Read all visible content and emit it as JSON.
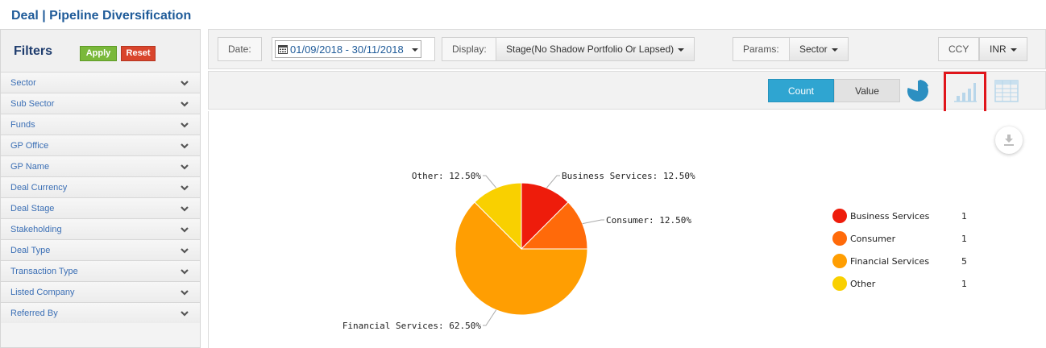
{
  "page": {
    "title": "Deal | Pipeline Diversification"
  },
  "filters": {
    "title": "Filters",
    "apply_label": "Apply",
    "reset_label": "Reset",
    "items": [
      {
        "label": "Sector"
      },
      {
        "label": "Sub Sector"
      },
      {
        "label": "Funds"
      },
      {
        "label": "GP Office"
      },
      {
        "label": "GP Name"
      },
      {
        "label": "Deal Currency"
      },
      {
        "label": "Deal Stage"
      },
      {
        "label": "Stakeholding"
      },
      {
        "label": "Deal Type"
      },
      {
        "label": "Transaction Type"
      },
      {
        "label": "Listed Company"
      },
      {
        "label": "Referred By"
      }
    ]
  },
  "controls": {
    "date_label": "Date:",
    "date_value": "01/09/2018 - 30/11/2018",
    "display_label": "Display:",
    "display_value": "Stage(No Shadow Portfolio Or Lapsed)",
    "params_label": "Params:",
    "params_value": "Sector",
    "ccy_label": "CCY",
    "ccy_value": "INR"
  },
  "toolbar": {
    "count_label": "Count",
    "value_label": "Value",
    "active_mode": "Count",
    "highlight_color": "#e0151b"
  },
  "chart_data": {
    "type": "pie",
    "title": "",
    "slices": [
      {
        "name": "Business Services",
        "value": 1,
        "percent": 12.5,
        "label": "Business Services: 12.50%",
        "color": "#ee1c0b"
      },
      {
        "name": "Consumer",
        "value": 1,
        "percent": 12.5,
        "label": "Consumer: 12.50%",
        "color": "#ff6a0a"
      },
      {
        "name": "Financial Services",
        "value": 5,
        "percent": 62.5,
        "label": "Financial Services: 62.50%",
        "color": "#ff9e02"
      },
      {
        "name": "Other",
        "value": 1,
        "percent": 12.5,
        "label": "Other: 12.50%",
        "color": "#f9d000"
      }
    ],
    "legend_placement": "right"
  }
}
